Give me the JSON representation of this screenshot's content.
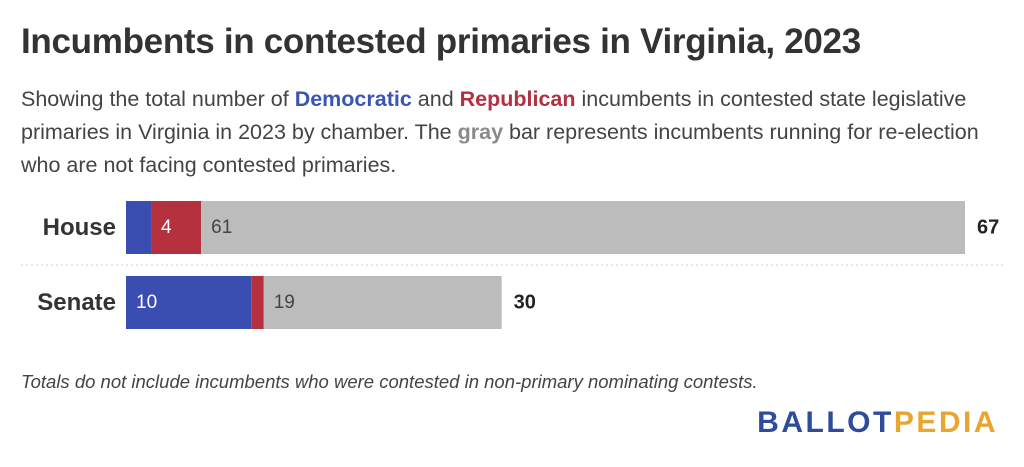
{
  "title": "Incumbents in contested primaries in Virginia, 2023",
  "subtitle": {
    "part1": "Showing the total number of ",
    "democratic": "Democratic",
    "part2": " and ",
    "republican": "Republican",
    "part3": " incumbents in contested state legislative primaries in Virginia in 2023 by chamber. The ",
    "gray": "gray",
    "part4": " bar represents incumbents running for re-election who are not facing contested primaries."
  },
  "note": "Totals do not include incumbents who were contested in non-primary nominating contests.",
  "logo": {
    "part1": "BALLOT",
    "part2": "PEDIA"
  },
  "colors": {
    "democratic": "#3a4db0",
    "republican": "#b5313e",
    "uncontested": "#bcbcbc"
  },
  "chart_data": {
    "type": "bar",
    "orientation": "horizontal",
    "stacked": true,
    "categories": [
      "House",
      "Senate"
    ],
    "series": [
      {
        "key": "democratic",
        "values": [
          2,
          10
        ],
        "labels": [
          "",
          "10"
        ]
      },
      {
        "key": "republican",
        "values": [
          4,
          1
        ],
        "labels": [
          "4",
          ""
        ]
      },
      {
        "key": "uncontested",
        "values": [
          61,
          19
        ],
        "labels": [
          "61",
          "19"
        ]
      }
    ],
    "totals": [
      67,
      30
    ],
    "xlim": [
      0,
      67
    ],
    "grid": false,
    "legend": "none"
  }
}
